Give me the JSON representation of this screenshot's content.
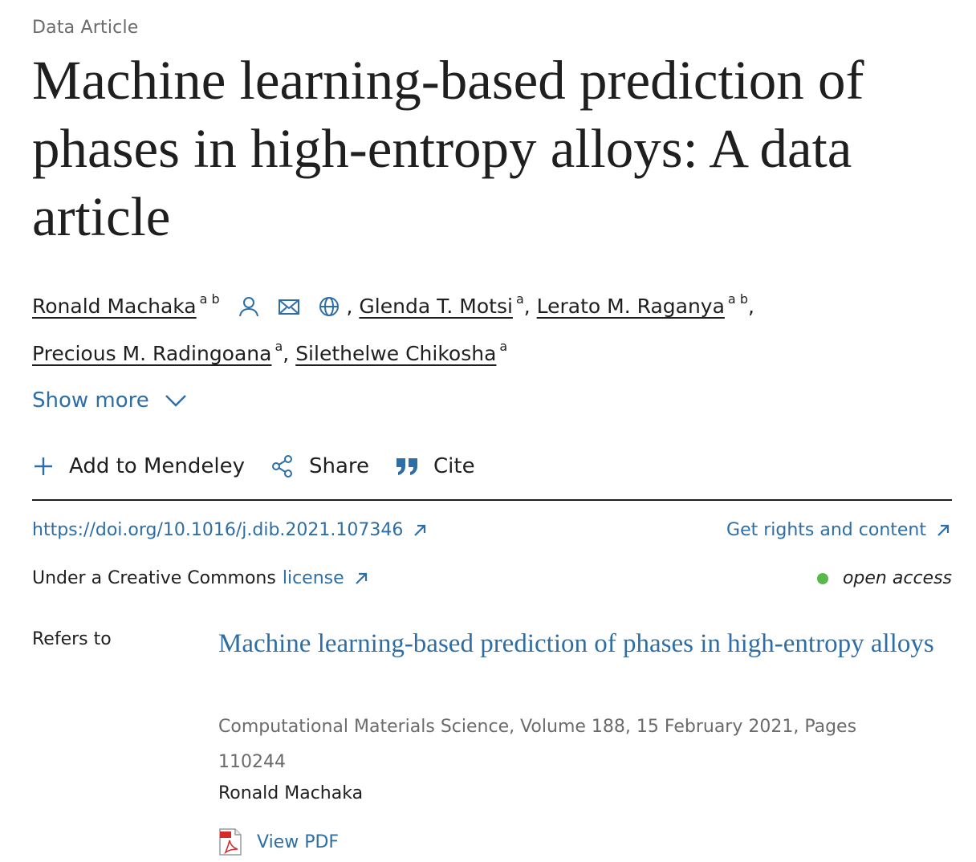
{
  "article_type": "Data Article",
  "title": "Machine learning-based prediction of phases in high-entropy alloys: A data article",
  "authors": [
    {
      "name": "Ronald Machaka",
      "sup": "a b"
    },
    {
      "name": "Glenda T. Motsi",
      "sup": "a"
    },
    {
      "name": "Lerato M. Raganya",
      "sup": "a b"
    },
    {
      "name": "Precious M. Radingoana",
      "sup": "a"
    },
    {
      "name": "Silethelwe Chikosha",
      "sup": "a"
    }
  ],
  "show_more": "Show more",
  "actions": {
    "mendeley": "Add to Mendeley",
    "share": "Share",
    "cite": "Cite"
  },
  "doi": "https://doi.org/10.1016/j.dib.2021.107346",
  "rights": "Get rights and content",
  "license_prefix": "Under a Creative Commons",
  "license_link": "license",
  "open_access": "open access",
  "refers": {
    "label": "Refers to",
    "title": "Machine learning-based prediction of phases in high-entropy alloys",
    "source": "Computational Materials Science, Volume 188, 15 February 2021, Pages 110244",
    "author": "Ronald Machaka",
    "view_pdf": "View PDF"
  },
  "colors": {
    "link": "#2e6ea6",
    "text": "#1f1f1f",
    "muted": "#6b6b6b",
    "open_access_dot": "#58b84a"
  },
  "icons": [
    "person-icon",
    "envelope-icon",
    "globe-icon",
    "chevron-down-icon",
    "plus-icon",
    "share-icon",
    "quote-icon",
    "external-link-icon",
    "pdf-icon"
  ]
}
